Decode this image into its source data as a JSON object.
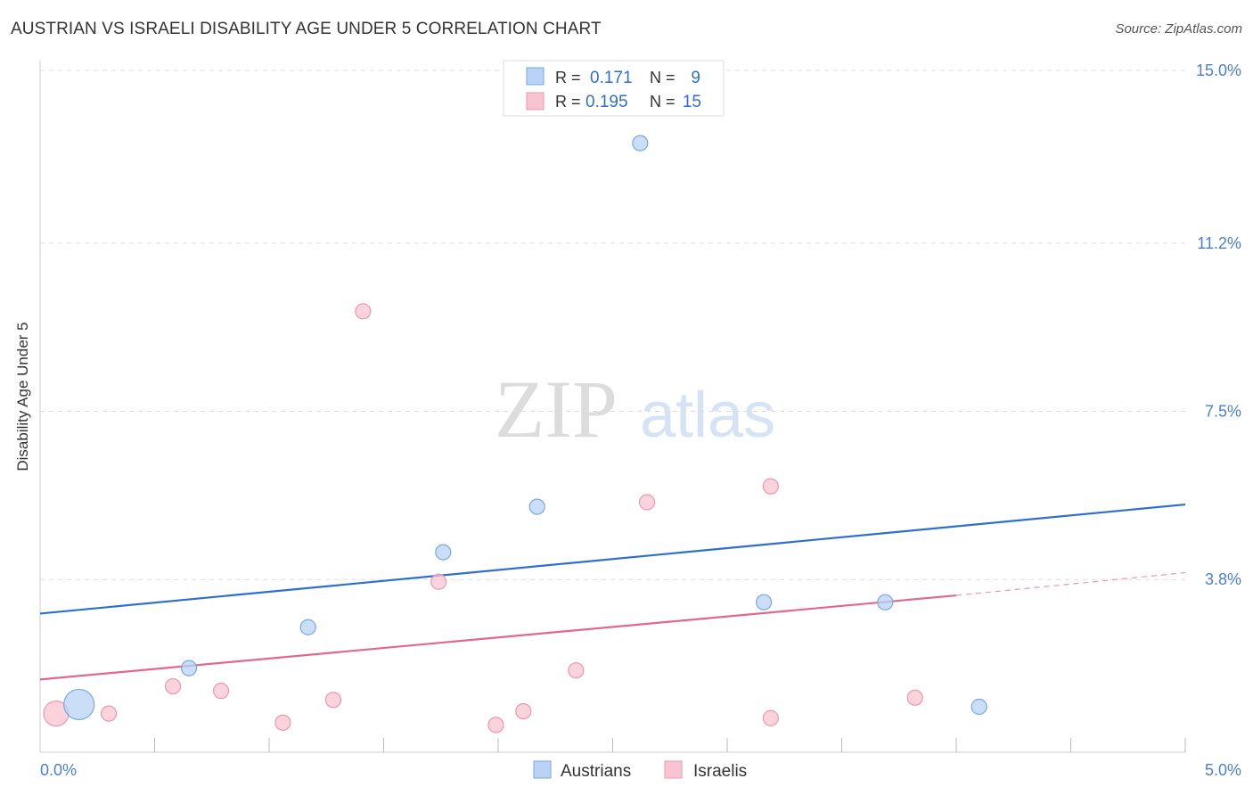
{
  "title": "AUSTRIAN VS ISRAELI DISABILITY AGE UNDER 5 CORRELATION CHART",
  "source": "Source: ZipAtlas.com",
  "watermark": {
    "zip": "ZIP",
    "atlas": "atlas"
  },
  "legend_top": [
    {
      "r_label": "R =",
      "r_value": "0.171",
      "n_label": "N =",
      "n_value": "9"
    },
    {
      "r_label": "R =",
      "r_value": "0.195",
      "n_label": "N =",
      "n_value": "15"
    }
  ],
  "legend_bottom": [
    "Austrians",
    "Israelis"
  ],
  "colors": {
    "austrians_fill": "#b8d3f5",
    "austrians_stroke": "#7aa7e0",
    "austrians_line": "#2f6fcc",
    "israelis_fill": "#f8c4d2",
    "israelis_stroke": "#eb97b0",
    "israelis_line": "#e0688f",
    "tick_label": "#4a7fcf",
    "grid": "#dddddd"
  },
  "chart_data": {
    "type": "scatter",
    "title": "AUSTRIAN VS ISRAELI DISABILITY AGE UNDER 5 CORRELATION CHART",
    "xlabel": "",
    "ylabel": "Disability Age Under 5",
    "xlim": [
      0.0,
      5.0
    ],
    "ylim": [
      0.0,
      15.0
    ],
    "x_tick_labels": [
      "0.0%",
      "5.0%"
    ],
    "y_ticks": [
      3.8,
      7.5,
      11.2,
      15.0
    ],
    "y_tick_labels": [
      "3.8%",
      "7.5%",
      "11.2%",
      "15.0%"
    ],
    "grid": true,
    "legend_placement": "top-center",
    "series": [
      {
        "name": "Austrians",
        "r": 0.171,
        "n": 9,
        "points": [
          {
            "x": 0.17,
            "y": 1.05,
            "size": "large"
          },
          {
            "x": 0.65,
            "y": 1.85
          },
          {
            "x": 1.17,
            "y": 2.75
          },
          {
            "x": 1.76,
            "y": 4.4
          },
          {
            "x": 2.17,
            "y": 5.4
          },
          {
            "x": 2.62,
            "y": 13.4
          },
          {
            "x": 3.16,
            "y": 3.3
          },
          {
            "x": 3.69,
            "y": 3.3
          },
          {
            "x": 4.1,
            "y": 1.0
          }
        ],
        "trend": {
          "x": [
            0.0,
            5.0
          ],
          "y": [
            3.05,
            5.45
          ]
        }
      },
      {
        "name": "Israelis",
        "r": 0.195,
        "n": 15,
        "points": [
          {
            "x": 0.07,
            "y": 0.85,
            "size": "large"
          },
          {
            "x": 0.3,
            "y": 0.85
          },
          {
            "x": 0.58,
            "y": 1.45
          },
          {
            "x": 0.79,
            "y": 1.35
          },
          {
            "x": 1.06,
            "y": 0.65
          },
          {
            "x": 1.28,
            "y": 1.15
          },
          {
            "x": 1.41,
            "y": 9.7
          },
          {
            "x": 1.74,
            "y": 3.75
          },
          {
            "x": 1.99,
            "y": 0.6
          },
          {
            "x": 2.11,
            "y": 0.9
          },
          {
            "x": 2.34,
            "y": 1.8
          },
          {
            "x": 2.65,
            "y": 5.5
          },
          {
            "x": 3.19,
            "y": 0.75
          },
          {
            "x": 3.19,
            "y": 5.85
          },
          {
            "x": 3.82,
            "y": 1.2
          }
        ],
        "trend": {
          "x": [
            0.0,
            4.0
          ],
          "y": [
            1.6,
            3.45
          ]
        },
        "trend_dashed": {
          "x": [
            4.0,
            5.0
          ],
          "y": [
            3.45,
            3.95
          ]
        }
      }
    ]
  }
}
